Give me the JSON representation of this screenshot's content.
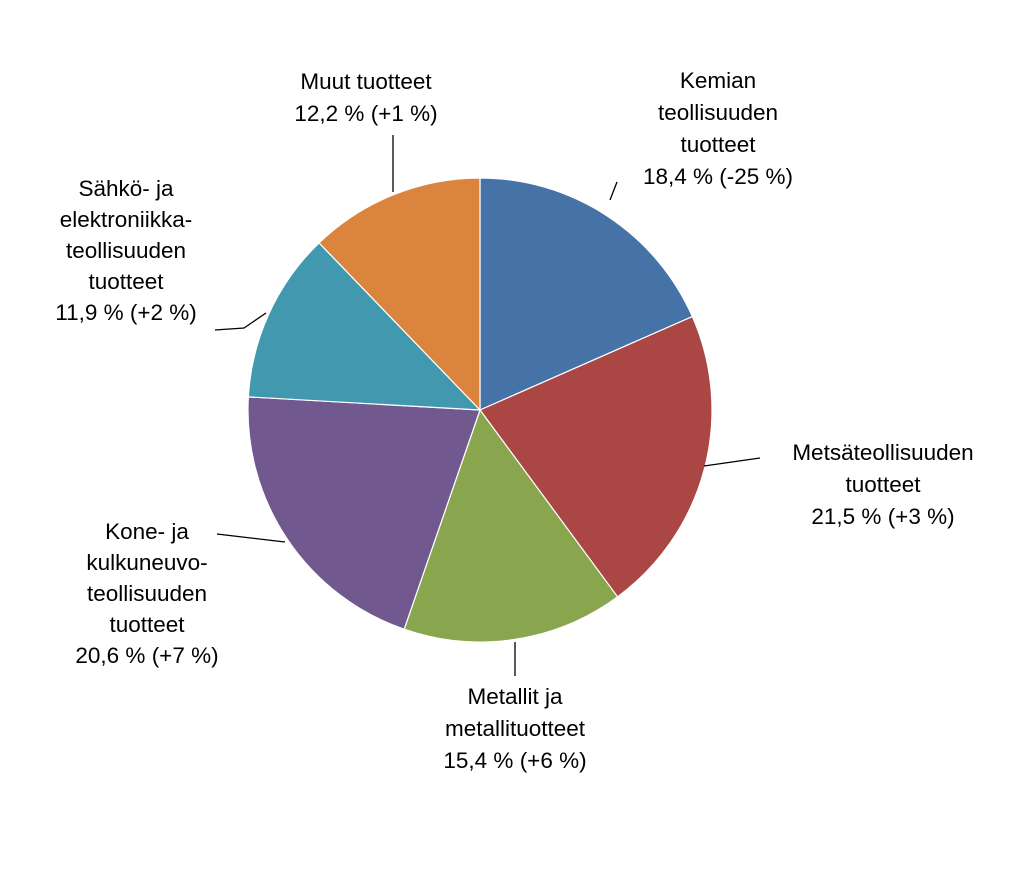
{
  "chart_data": {
    "type": "pie",
    "title": "",
    "start_angle_deg": 0,
    "direction": "clockwise",
    "slices": [
      {
        "label_lines": [
          "Kemian",
          "teollisuuden",
          "tuotteet"
        ],
        "value": 18.4,
        "value_text": "18,4 % (-25 %)",
        "change_pct": -25,
        "color": "#4572A7"
      },
      {
        "label_lines": [
          "Metsäteollisuuden",
          "tuotteet"
        ],
        "value": 21.5,
        "value_text": "21,5 % (+3 %)",
        "change_pct": 3,
        "color": "#AA4643"
      },
      {
        "label_lines": [
          "Metallit ja",
          "metallituotteet"
        ],
        "value": 15.4,
        "value_text": "15,4 % (+6 %)",
        "change_pct": 6,
        "color": "#89A54E"
      },
      {
        "label_lines": [
          "Kone- ja",
          "kulkuneuvo-",
          "teollisuuden",
          "tuotteet"
        ],
        "value": 20.6,
        "value_text": "20,6 % (+7 %)",
        "change_pct": 7,
        "color": "#71588F"
      },
      {
        "label_lines": [
          "Sähkö- ja",
          "elektroniikka-",
          "teollisuuden",
          "tuotteet"
        ],
        "value": 11.9,
        "value_text": "11,9 % (+2 %)",
        "change_pct": 2,
        "color": "#4198AF"
      },
      {
        "label_lines": [
          "Muut tuotteet"
        ],
        "value": 12.2,
        "value_text": "12,2 % (+1 %)",
        "change_pct": 1,
        "color": "#DB843D"
      }
    ]
  }
}
